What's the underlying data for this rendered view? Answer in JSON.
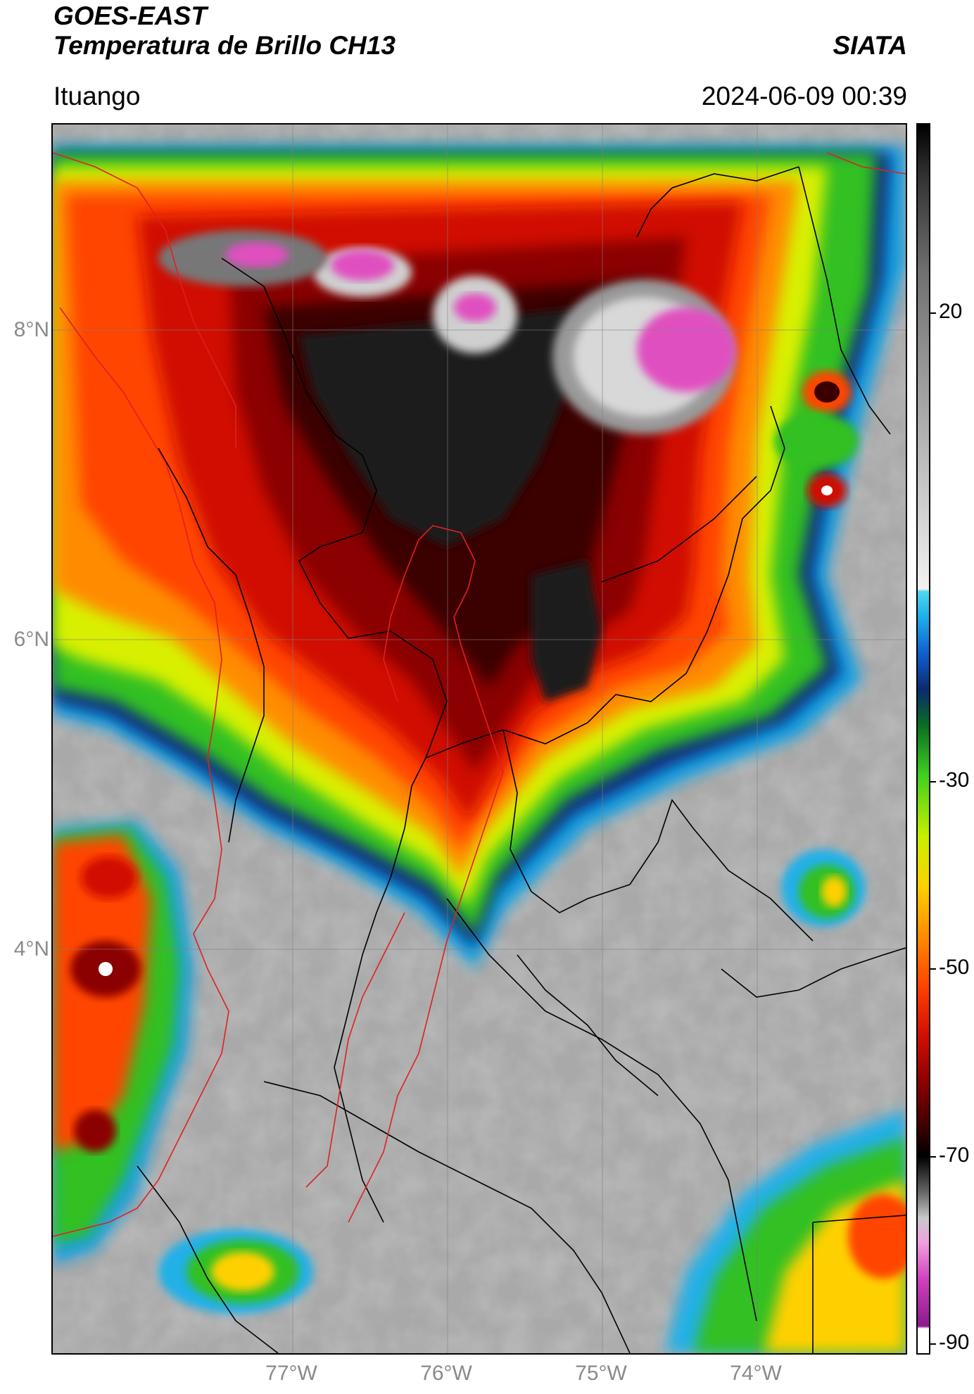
{
  "header": {
    "satellite": "GOES-EAST",
    "product": "Temperatura de Brillo CH13",
    "organization": "SIATA",
    "location": "Ituango",
    "datetime": "2024-06-09 00:39"
  },
  "map": {
    "lat_ticks": [
      "8°N",
      "6°N",
      "4°N"
    ],
    "lon_ticks": [
      "77°W",
      "76°W",
      "75°W",
      "74°W"
    ],
    "border_colors": {
      "country": "#e02020",
      "admin": "#000000"
    }
  },
  "colorbar": {
    "ticks": [
      "20",
      "-30",
      "-50",
      "-70",
      "-90"
    ],
    "stops": [
      "#ffffff",
      "#9a1a9a",
      "#e040c0",
      "#f0c0e0",
      "#bcbcbc",
      "#6a6a6a",
      "#1a1a1a",
      "#4a0000",
      "#8b0000",
      "#d41000",
      "#ff4500",
      "#ff8c00",
      "#ffd000",
      "#c8f000",
      "#40d020",
      "#0a7020",
      "#0a2a70",
      "#1060d0",
      "#20b0e8",
      "#50d8f0",
      "#f2f2f2",
      "#b0b0b0",
      "#707070",
      "#303030",
      "#000000"
    ]
  }
}
